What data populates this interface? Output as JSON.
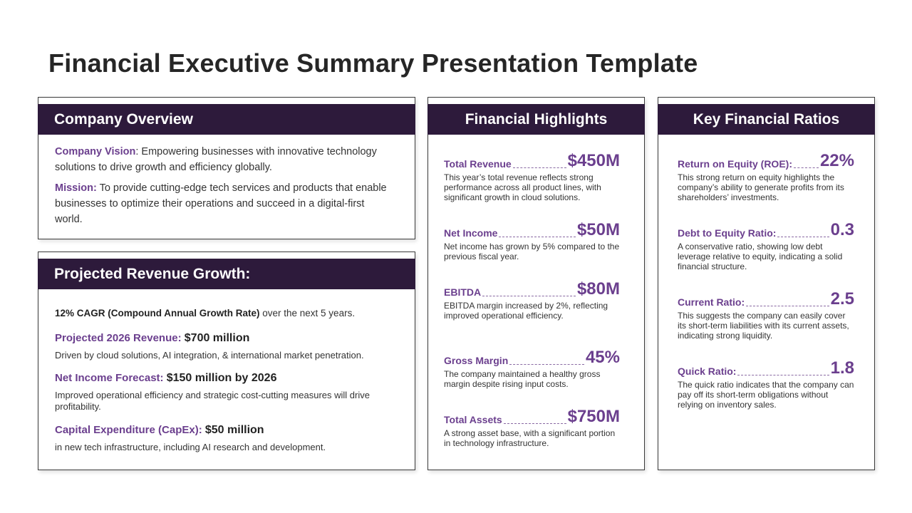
{
  "title": "Financial Executive Summary Presentation Template",
  "overview": {
    "header": "Company Overview",
    "vision_label": "Company Vision",
    "vision_text": ": Empowering businesses with innovative technology solutions to drive growth and efficiency globally.",
    "mission_label": "Mission:",
    "mission_text": " To provide cutting-edge tech services and products that enable businesses to optimize their operations and succeed in a digital-first world."
  },
  "growth": {
    "header": "Projected Revenue Growth:",
    "cagr_strong": "12% CAGR (Compound Annual Growth Rate)",
    "cagr_rest": " over the next 5 years.",
    "items": [
      {
        "label": "Projected 2026 Revenue: ",
        "value": "$700 million",
        "desc": "Driven by cloud solutions, AI integration, & international market penetration."
      },
      {
        "label": "Net Income Forecast: ",
        "value": "$150 million by 2026",
        "desc": "Improved operational efficiency and strategic cost-cutting measures will drive profitability."
      },
      {
        "label": "Capital Expenditure (CapEx): ",
        "value": "$50 million",
        "desc": "in new tech infrastructure, including AI research and development."
      }
    ]
  },
  "highlights": {
    "header": "Financial Highlights",
    "items": [
      {
        "label": "Total Revenue",
        "value": "$450M",
        "desc": "This year’s total revenue reflects strong performance across all product lines, with significant growth in cloud solutions."
      },
      {
        "label": "Net Income",
        "value": "$50M",
        "desc": "Net income has grown by 5% compared to the previous fiscal year."
      },
      {
        "label": "EBITDA",
        "value": "$80M",
        "desc": "EBITDA margin increased by 2%, reflecting improved operational efficiency."
      },
      {
        "label": "Gross Margin",
        "value": "45%",
        "desc": "The company maintained a healthy gross margin despite rising input costs."
      },
      {
        "label": "Total Assets",
        "value": "$750M",
        "desc": "A strong asset base, with a significant portion in technology infrastructure."
      }
    ]
  },
  "ratios": {
    "header": "Key Financial Ratios",
    "items": [
      {
        "label": "Return on Equity (ROE):",
        "value": "22%",
        "desc": "This strong return on equity highlights the company’s ability to generate profits from its shareholders’ investments."
      },
      {
        "label": "Debt to Equity Ratio:",
        "value": "0.3",
        "desc": "A conservative ratio, showing low debt leverage relative to equity, indicating a solid financial structure."
      },
      {
        "label": "Current Ratio:",
        "value": "2.5",
        "desc": "This suggests the company can easily cover its short-term liabilities with its current assets, indicating strong liquidity."
      },
      {
        "label": "Quick Ratio:",
        "value": "1.8",
        "desc": "The quick ratio indicates that the company can pay off its short-term obligations without relying on inventory sales."
      }
    ]
  }
}
